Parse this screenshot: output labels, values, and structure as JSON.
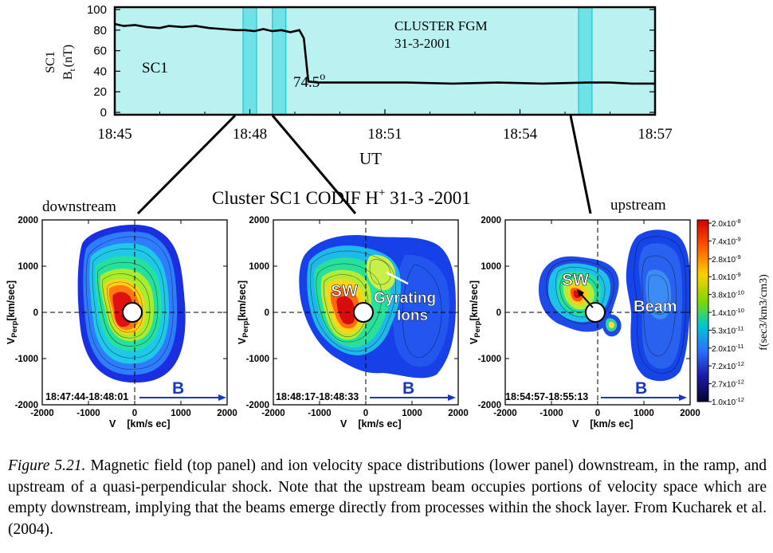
{
  "top_panel": {
    "ylabel_line1": "SC1",
    "ylabel_line2_main": "B",
    "ylabel_line2_sub": "t",
    "ylabel_line2_unit": "(nT)",
    "xlabel": "UT",
    "inner_label": "SC1",
    "angle_value": "74.5",
    "angle_symbol": "o",
    "title_line1": "CLUSTER FGM",
    "title_line2": "31-3-2001",
    "bg_color": "#b9f2f0",
    "line_color": "#000000"
  },
  "chart_data": {
    "type": "line",
    "xlabel": "UT",
    "ylabel": "SC1 Bt (nT)",
    "x_ticks": [
      "18:45",
      "18:48",
      "18:51",
      "18:54",
      "18:57"
    ],
    "y_ticks": [
      "100",
      "80",
      "60",
      "40",
      "20",
      "0"
    ],
    "xlim_minutes_after_1845": [
      0,
      12
    ],
    "ylim": [
      0,
      100
    ],
    "series": [
      {
        "x_minutes_after_1845": [
          0,
          0.2,
          0.45,
          0.7,
          1.0,
          1.2,
          1.5,
          1.8,
          2.1,
          2.4,
          2.7,
          2.9,
          3.1,
          3.3,
          3.5,
          3.7,
          3.9,
          4.1,
          4.2,
          4.3,
          4.5,
          4.9,
          5.5,
          6.5,
          7.5,
          8.5,
          9.5,
          10.5,
          11.0,
          11.5,
          12.0
        ],
        "values": [
          86,
          84,
          85,
          83,
          82,
          84,
          83,
          84,
          82,
          81,
          80,
          80,
          79,
          81,
          79,
          80,
          78,
          80,
          72,
          30,
          29,
          29,
          29,
          29,
          28,
          29,
          28,
          29,
          29,
          28,
          28
        ]
      }
    ],
    "highlight_bands_minutes_after_1845": [
      [
        2.85,
        3.15
      ],
      [
        3.5,
        3.8
      ],
      [
        10.3,
        10.6
      ]
    ]
  },
  "headline": {
    "main": "Cluster SC1 CODIF H",
    "sup": "+",
    "rest": " 31-3 -2001"
  },
  "panels": {
    "left_title": "downstream",
    "right_title": "upstream",
    "ylabel_main": "V",
    "ylabel_sub": "Perp",
    "ylabel_unit": "[km/sec]",
    "xlabel_main": "V",
    "xlabel_unit": "[km/s ec]",
    "ticks": [
      "-2000",
      "-1000",
      "0",
      "1000",
      "2000"
    ],
    "b_label": "B",
    "times": [
      "18:47:44-18:48:01",
      "18:48:17-18:48:33",
      "18:54:57-18:55:13"
    ],
    "sw_label": "SW",
    "gyrating_label_1": "Gyrating",
    "gyrating_label_2": "Ions",
    "beam_label": "Beam"
  },
  "colorbar": {
    "labels": [
      "2.0x10-8",
      "7.4x10-9",
      "2.8x10-9",
      "1.0x10-9",
      "3.8x10-10",
      "1.4x10-10",
      "5.3x10-11",
      "2.0x10-11",
      "7.2x10-12",
      "2.7x10-12",
      "1.0x10-12"
    ],
    "title": "f(sec3/km3/cm3)"
  },
  "caption": {
    "label": "Figure 5.21.",
    "text": "Magnetic field (top panel) and ion velocity space distributions (lower panel) downstream, in the ramp, and upstream of a quasi-perpendicular shock. Note that the upstream beam occupies portions of velocity space which are empty downstream, implying that the beams emerge directly from processes within the shock layer. From Kucharek et al. (2004)."
  }
}
